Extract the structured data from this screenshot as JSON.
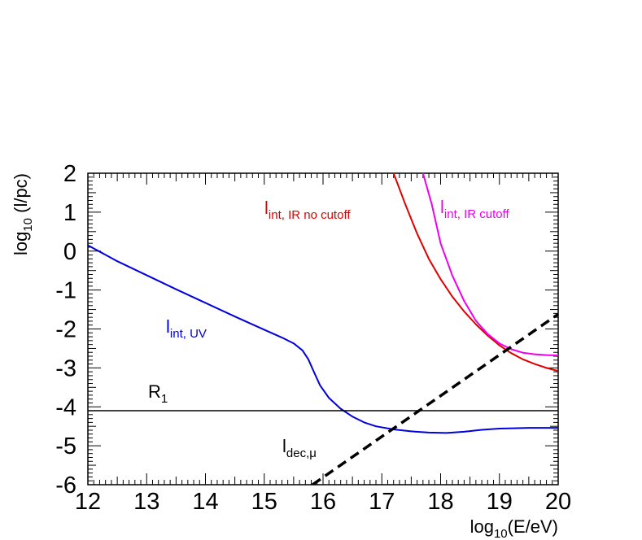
{
  "chart_data": {
    "type": "line",
    "xlabel": {
      "main": "log",
      "sub": "10",
      "rest": "(E/eV)"
    },
    "ylabel": {
      "main": "log",
      "sub": "10",
      "rest": " (l/pc)"
    },
    "xlim": [
      12,
      20
    ],
    "ylim": [
      -6,
      2
    ],
    "x_ticks": [
      12,
      13,
      14,
      15,
      16,
      17,
      18,
      19,
      20
    ],
    "x_tick_labels": [
      "12",
      "13",
      "14",
      "15",
      "16",
      "17",
      "18",
      "19",
      "20"
    ],
    "y_ticks": [
      -6,
      -5,
      -4,
      -3,
      -2,
      -1,
      0,
      1,
      2
    ],
    "y_tick_labels": [
      "-6",
      "-5",
      "-4",
      "-3",
      "-2",
      "-1",
      "0",
      "1",
      "2"
    ],
    "grid": false,
    "series": [
      {
        "name": {
          "main": "l",
          "sub": "int, UV"
        },
        "color": "#0000dd",
        "dash": "solid",
        "points": [
          [
            12.0,
            0.15
          ],
          [
            12.5,
            -0.26
          ],
          [
            13.0,
            -0.62
          ],
          [
            13.5,
            -0.98
          ],
          [
            14.0,
            -1.33
          ],
          [
            14.5,
            -1.68
          ],
          [
            15.0,
            -2.02
          ],
          [
            15.3,
            -2.22
          ],
          [
            15.5,
            -2.37
          ],
          [
            15.65,
            -2.55
          ],
          [
            15.75,
            -2.78
          ],
          [
            15.85,
            -3.12
          ],
          [
            15.95,
            -3.45
          ],
          [
            16.1,
            -3.77
          ],
          [
            16.3,
            -4.05
          ],
          [
            16.5,
            -4.25
          ],
          [
            16.7,
            -4.4
          ],
          [
            16.9,
            -4.5
          ],
          [
            17.2,
            -4.58
          ],
          [
            17.5,
            -4.63
          ],
          [
            17.8,
            -4.66
          ],
          [
            18.1,
            -4.67
          ],
          [
            18.4,
            -4.64
          ],
          [
            18.7,
            -4.59
          ],
          [
            19.0,
            -4.56
          ],
          [
            19.5,
            -4.54
          ],
          [
            20.0,
            -4.54
          ]
        ]
      },
      {
        "name": {
          "main": "l",
          "sub": "int, IR no cutoff"
        },
        "color": "#e00000",
        "dash": "solid",
        "points": [
          [
            17.2,
            2.0
          ],
          [
            17.4,
            1.2
          ],
          [
            17.6,
            0.45
          ],
          [
            17.8,
            -0.2
          ],
          [
            18.0,
            -0.72
          ],
          [
            18.2,
            -1.17
          ],
          [
            18.4,
            -1.55
          ],
          [
            18.6,
            -1.88
          ],
          [
            18.8,
            -2.17
          ],
          [
            19.0,
            -2.42
          ],
          [
            19.2,
            -2.62
          ],
          [
            19.4,
            -2.78
          ],
          [
            19.6,
            -2.9
          ],
          [
            19.8,
            -3.0
          ],
          [
            20.0,
            -3.08
          ]
        ]
      },
      {
        "name": {
          "main": "l",
          "sub": "int, IR cutoff"
        },
        "color": "#ee00ee",
        "dash": "solid",
        "points": [
          [
            17.7,
            2.0
          ],
          [
            17.85,
            1.2
          ],
          [
            18.0,
            0.2
          ],
          [
            18.2,
            -0.63
          ],
          [
            18.4,
            -1.28
          ],
          [
            18.6,
            -1.79
          ],
          [
            18.8,
            -2.13
          ],
          [
            19.0,
            -2.37
          ],
          [
            19.2,
            -2.52
          ],
          [
            19.4,
            -2.61
          ],
          [
            19.6,
            -2.65
          ],
          [
            19.8,
            -2.67
          ],
          [
            20.0,
            -2.68
          ]
        ]
      },
      {
        "name": {
          "main": "l",
          "sub": "dec,μ"
        },
        "color": "#000000",
        "dash": "dashed",
        "points": [
          [
            15.82,
            -6.0
          ],
          [
            20.0,
            -1.62
          ]
        ]
      },
      {
        "name": {
          "main": "R",
          "sub": "1"
        },
        "color": "#000000",
        "dash": "solid",
        "points": [
          [
            12.0,
            -4.1
          ],
          [
            20.0,
            -4.1
          ]
        ]
      }
    ]
  }
}
